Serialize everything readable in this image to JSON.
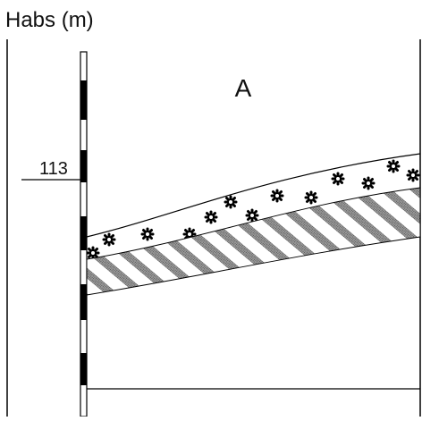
{
  "header": {
    "title": "Habs (m)"
  },
  "section": {
    "label": "A"
  },
  "scale": {
    "marker_label": "113"
  }
}
